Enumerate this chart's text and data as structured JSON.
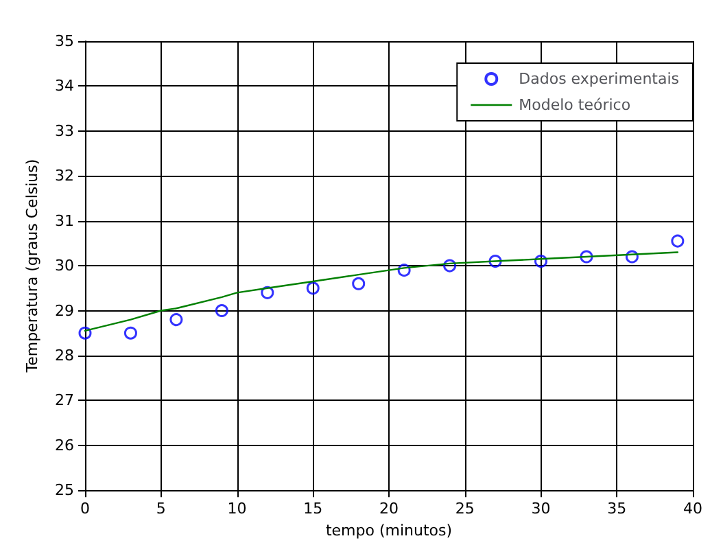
{
  "chart_data": {
    "type": "scatter",
    "xlabel": "tempo (minutos)",
    "ylabel": "Temperatura (graus Celsius)",
    "xlim": [
      0,
      40
    ],
    "xticks": [
      0,
      5,
      10,
      15,
      20,
      25,
      30,
      35,
      40
    ],
    "ylim": [
      25,
      35
    ],
    "yticks": [
      25,
      26,
      27,
      28,
      29,
      30,
      31,
      32,
      33,
      34,
      35
    ],
    "grid": true,
    "legend": "top right",
    "marker": "circle",
    "series": [
      {
        "name": "Dados experimentais",
        "color": "#0000ff",
        "x": [
          0,
          3,
          6,
          9,
          12,
          15,
          18,
          21,
          24,
          27,
          30,
          33,
          36,
          39
        ],
        "values": [
          28.5,
          28.5,
          28.8,
          29.0,
          29.4,
          29.5,
          29.6,
          29.9,
          30.0,
          30.1,
          30.1,
          30.2,
          30.2,
          30.55
        ]
      },
      {
        "name": "Modelo teórico",
        "type": "line",
        "color": "#008000",
        "line_style": "solid",
        "marker": "none",
        "x": [
          0,
          3,
          5,
          6,
          9,
          10,
          12,
          15,
          18,
          20,
          21,
          24,
          27,
          30,
          33,
          36,
          39
        ],
        "values": [
          28.55,
          28.8,
          29.0,
          29.05,
          29.3,
          29.4,
          29.5,
          29.65,
          29.8,
          29.9,
          29.95,
          30.05,
          30.1,
          30.15,
          30.2,
          30.25,
          30.3
        ]
      }
    ]
  }
}
